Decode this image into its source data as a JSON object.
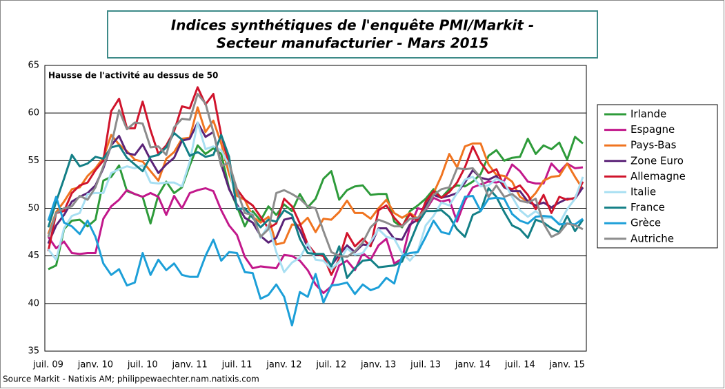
{
  "chart_data": {
    "type": "line",
    "title": "Indices synthétiques de l'enquête PMI/Markit -",
    "subtitle": "Secteur manufacturier - Mars 2015",
    "annotation": "Hausse de l'activité au dessus de 50",
    "source": "Source Markit - Natixis AM; philippewaechter.nam.natixis.com",
    "categories": [
      "juil. 09",
      null,
      null,
      null,
      null,
      null,
      "janv. 10",
      null,
      null,
      null,
      null,
      null,
      "juil. 10",
      null,
      null,
      null,
      null,
      null,
      "janv. 11",
      null,
      null,
      null,
      null,
      null,
      "juil. 11",
      null,
      null,
      null,
      null,
      null,
      "janv. 12",
      null,
      null,
      null,
      null,
      null,
      "juil. 12",
      null,
      null,
      null,
      null,
      null,
      "janv. 13",
      null,
      null,
      null,
      null,
      null,
      "juil. 13",
      null,
      null,
      null,
      null,
      null,
      "janv. 14",
      null,
      null,
      null,
      null,
      null,
      "juil. 14",
      null,
      null,
      null,
      null,
      null,
      "janv. 15",
      null,
      null
    ],
    "ylim": [
      35,
      65
    ],
    "yticks": [
      35,
      40,
      45,
      50,
      55,
      60,
      65
    ],
    "grid": true,
    "series": [
      {
        "name": "Irlande",
        "color": "#2e9b3a",
        "values": [
          43.6,
          44.0,
          47.8,
          48.7,
          48.8,
          48.1,
          48.8,
          52.9,
          53.3,
          54.5,
          51.8,
          51.5,
          51.2,
          48.4,
          51.4,
          52.8,
          51.6,
          52.2,
          54.5,
          56.6,
          55.7,
          56.3,
          55.7,
          52.1,
          50.2,
          48.1,
          49.7,
          48.7,
          50.2,
          49.3,
          50.4,
          49.7,
          51.5,
          50.1,
          51.0,
          53.1,
          53.9,
          50.9,
          51.9,
          52.3,
          52.4,
          51.4,
          51.5,
          51.5,
          48.6,
          48.0,
          49.7,
          50.3,
          51.0,
          52.0,
          51.1,
          52.0,
          52.4,
          52.3,
          52.8,
          53.6,
          55.5,
          56.1,
          55.0,
          55.3,
          55.4,
          57.3,
          55.7,
          56.6,
          56.2,
          56.9,
          55.1,
          57.5,
          56.8
        ]
      },
      {
        "name": "Espagne",
        "color": "#c2188b",
        "values": [
          47.0,
          45.8,
          46.5,
          45.3,
          45.2,
          45.3,
          45.3,
          48.9,
          50.2,
          50.9,
          51.9,
          51.5,
          51.2,
          51.6,
          51.2,
          49.3,
          51.3,
          50.0,
          51.6,
          51.9,
          52.1,
          51.8,
          49.8,
          48.2,
          47.2,
          44.9,
          43.7,
          43.9,
          43.8,
          43.7,
          45.1,
          45.0,
          44.5,
          43.5,
          42.0,
          41.1,
          41.8,
          44.0,
          44.5,
          43.5,
          45.3,
          44.6,
          46.1,
          46.8,
          44.2,
          44.7,
          48.1,
          50.0,
          49.8,
          51.1,
          50.7,
          50.9,
          48.6,
          50.8,
          52.2,
          52.5,
          52.8,
          52.7,
          52.9,
          54.6,
          53.9,
          52.8,
          52.6,
          52.6,
          54.7,
          53.8,
          54.7,
          54.2,
          54.3
        ]
      },
      {
        "name": "Pays-Bas",
        "color": "#f07420",
        "values": [
          47.3,
          49.6,
          50.7,
          52.0,
          52.2,
          53.4,
          54.2,
          55.3,
          57.7,
          56.7,
          56.0,
          55.1,
          54.9,
          53.9,
          52.9,
          55.2,
          55.9,
          57.3,
          57.4,
          60.6,
          58.0,
          59.2,
          56.8,
          53.6,
          51.3,
          50.9,
          49.1,
          48.5,
          49.1,
          46.2,
          46.4,
          48.3,
          48.2,
          49.0,
          47.5,
          48.9,
          48.8,
          49.6,
          50.8,
          49.5,
          49.5,
          48.9,
          50.0,
          50.9,
          49.5,
          49.0,
          49.5,
          48.9,
          50.4,
          51.6,
          53.4,
          55.7,
          54.3,
          56.5,
          56.8,
          56.8,
          54.6,
          53.5,
          53.4,
          52.8,
          51.2,
          50.7,
          51.6,
          52.9,
          53.3,
          53.4,
          54.7,
          53.3,
          52.0
        ]
      },
      {
        "name": "Zone Euro",
        "color": "#5b2378",
        "values": [
          46.3,
          48.2,
          49.3,
          50.7,
          51.2,
          51.6,
          52.4,
          54.2,
          56.6,
          57.6,
          55.8,
          55.6,
          56.7,
          55.1,
          53.7,
          54.6,
          55.3,
          57.1,
          57.3,
          59.0,
          57.5,
          58.0,
          54.6,
          52.0,
          50.4,
          49.0,
          48.5,
          47.1,
          46.4,
          46.9,
          48.8,
          49.0,
          47.7,
          45.9,
          45.1,
          45.1,
          44.0,
          45.1,
          46.1,
          45.4,
          46.2,
          46.1,
          47.9,
          47.9,
          46.8,
          46.7,
          48.3,
          48.8,
          50.3,
          51.4,
          51.1,
          51.3,
          51.6,
          52.7,
          54.0,
          53.2,
          53.0,
          53.4,
          52.2,
          51.8,
          51.8,
          50.7,
          50.3,
          50.6,
          50.1,
          50.6,
          51.0,
          51.0,
          52.2
        ]
      },
      {
        "name": "Allemagne",
        "color": "#d0142c",
        "values": [
          45.5,
          49.5,
          49.7,
          51.6,
          52.4,
          52.7,
          54.0,
          55.0,
          60.2,
          61.5,
          58.4,
          58.4,
          61.2,
          58.2,
          55.7,
          56.6,
          58.1,
          60.7,
          60.5,
          62.7,
          60.9,
          62.0,
          57.7,
          54.6,
          52.0,
          50.9,
          50.3,
          49.1,
          47.9,
          48.4,
          51.0,
          50.2,
          48.4,
          46.2,
          45.2,
          45.0,
          43.0,
          44.7,
          47.4,
          46.0,
          46.8,
          46.0,
          49.8,
          50.3,
          49.0,
          48.1,
          49.4,
          48.6,
          50.7,
          51.8,
          51.1,
          51.7,
          52.7,
          54.3,
          56.5,
          54.8,
          53.7,
          54.1,
          52.3,
          52.0,
          52.4,
          51.4,
          49.9,
          51.4,
          49.5,
          51.2,
          50.9,
          51.1,
          52.8
        ]
      },
      {
        "name": "Italie",
        "color": "#a8dff2",
        "values": [
          45.7,
          44.6,
          47.9,
          49.2,
          49.5,
          51.5,
          51.6,
          51.6,
          53.7,
          54.1,
          54.4,
          54.2,
          54.5,
          52.7,
          52.6,
          52.7,
          52.7,
          52.3,
          54.9,
          59.0,
          56.2,
          56.5,
          56.1,
          54.5,
          50.1,
          49.8,
          49.4,
          46.9,
          48.2,
          45.4,
          43.3,
          44.3,
          44.8,
          46.3,
          44.6,
          44.5,
          43.6,
          44.4,
          45.8,
          45.1,
          45.3,
          46.5,
          47.8,
          47.0,
          46.8,
          45.3,
          44.5,
          45.5,
          48.2,
          49.2,
          50.6,
          50.3,
          51.6,
          53.0,
          53.3,
          52.3,
          52.4,
          53.1,
          52.7,
          51.2,
          49.8,
          49.1,
          49.7,
          49.0,
          49.0,
          48.4,
          49.9,
          51.0,
          53.3
        ]
      },
      {
        "name": "France",
        "color": "#137f86",
        "values": [
          48.0,
          50.7,
          53.1,
          55.6,
          54.4,
          54.7,
          55.4,
          55.2,
          56.4,
          56.6,
          55.3,
          54.6,
          53.9,
          55.4,
          55.6,
          56.4,
          57.9,
          57.2,
          55.5,
          55.9,
          55.4,
          55.6,
          57.7,
          55.4,
          49.9,
          50.0,
          49.0,
          48.0,
          48.8,
          48.6,
          49.8,
          49.3,
          46.8,
          45.3,
          45.2,
          45.2,
          43.9,
          46.0,
          42.7,
          43.7,
          44.5,
          44.6,
          43.8,
          43.9,
          44.0,
          44.4,
          46.4,
          48.4,
          49.7,
          49.7,
          49.8,
          49.1,
          47.8,
          47.0,
          49.3,
          49.7,
          52.1,
          51.2,
          49.6,
          48.2,
          47.8,
          46.9,
          48.8,
          48.5,
          47.9,
          47.5,
          49.2,
          47.6,
          48.8
        ]
      },
      {
        "name": "Grèce",
        "color": "#1c9fd8",
        "values": [
          48.7,
          51.2,
          48.5,
          48.1,
          47.3,
          48.7,
          47.0,
          44.2,
          43.0,
          43.6,
          41.9,
          42.2,
          45.3,
          43.0,
          44.6,
          43.5,
          44.2,
          43.0,
          42.8,
          42.8,
          45.0,
          46.7,
          44.5,
          45.4,
          45.3,
          43.3,
          43.2,
          40.5,
          40.9,
          42.0,
          40.7,
          37.7,
          41.2,
          40.7,
          43.1,
          40.1,
          41.9,
          42.0,
          42.2,
          41.0,
          42.0,
          41.4,
          41.7,
          42.7,
          42.1,
          45.0,
          45.3,
          45.4,
          47.0,
          48.7,
          47.5,
          47.3,
          49.2,
          51.2,
          51.3,
          49.7,
          51.0,
          51.1,
          51.0,
          49.4,
          48.7,
          48.4,
          49.1,
          49.2,
          49.1,
          48.3,
          48.4,
          48.3,
          48.9
        ]
      },
      {
        "name": "Autriche",
        "color": "#8c8c8c",
        "values": [
          47.0,
          49.5,
          50.0,
          50.2,
          51.3,
          50.9,
          52.2,
          54.4,
          56.6,
          60.3,
          58.3,
          59.0,
          58.9,
          56.4,
          56.5,
          55.6,
          58.5,
          59.4,
          59.3,
          62.0,
          61.0,
          58.0,
          54.4,
          54.8,
          51.9,
          49.5,
          49.3,
          47.0,
          47.8,
          51.6,
          51.9,
          51.5,
          51.0,
          50.2,
          50.0,
          47.6,
          45.4,
          45.0,
          44.9,
          45.5,
          46.4,
          48.0,
          48.8,
          48.5,
          48.1,
          48.1,
          48.9,
          49.0,
          49.9,
          51.4,
          52.0,
          52.2,
          54.2,
          54.1,
          54.2,
          53.2,
          51.2,
          52.4,
          51.2,
          51.5,
          50.8,
          50.6,
          51.0,
          48.4,
          47.0,
          47.4,
          48.4,
          48.2,
          47.8
        ]
      }
    ]
  }
}
